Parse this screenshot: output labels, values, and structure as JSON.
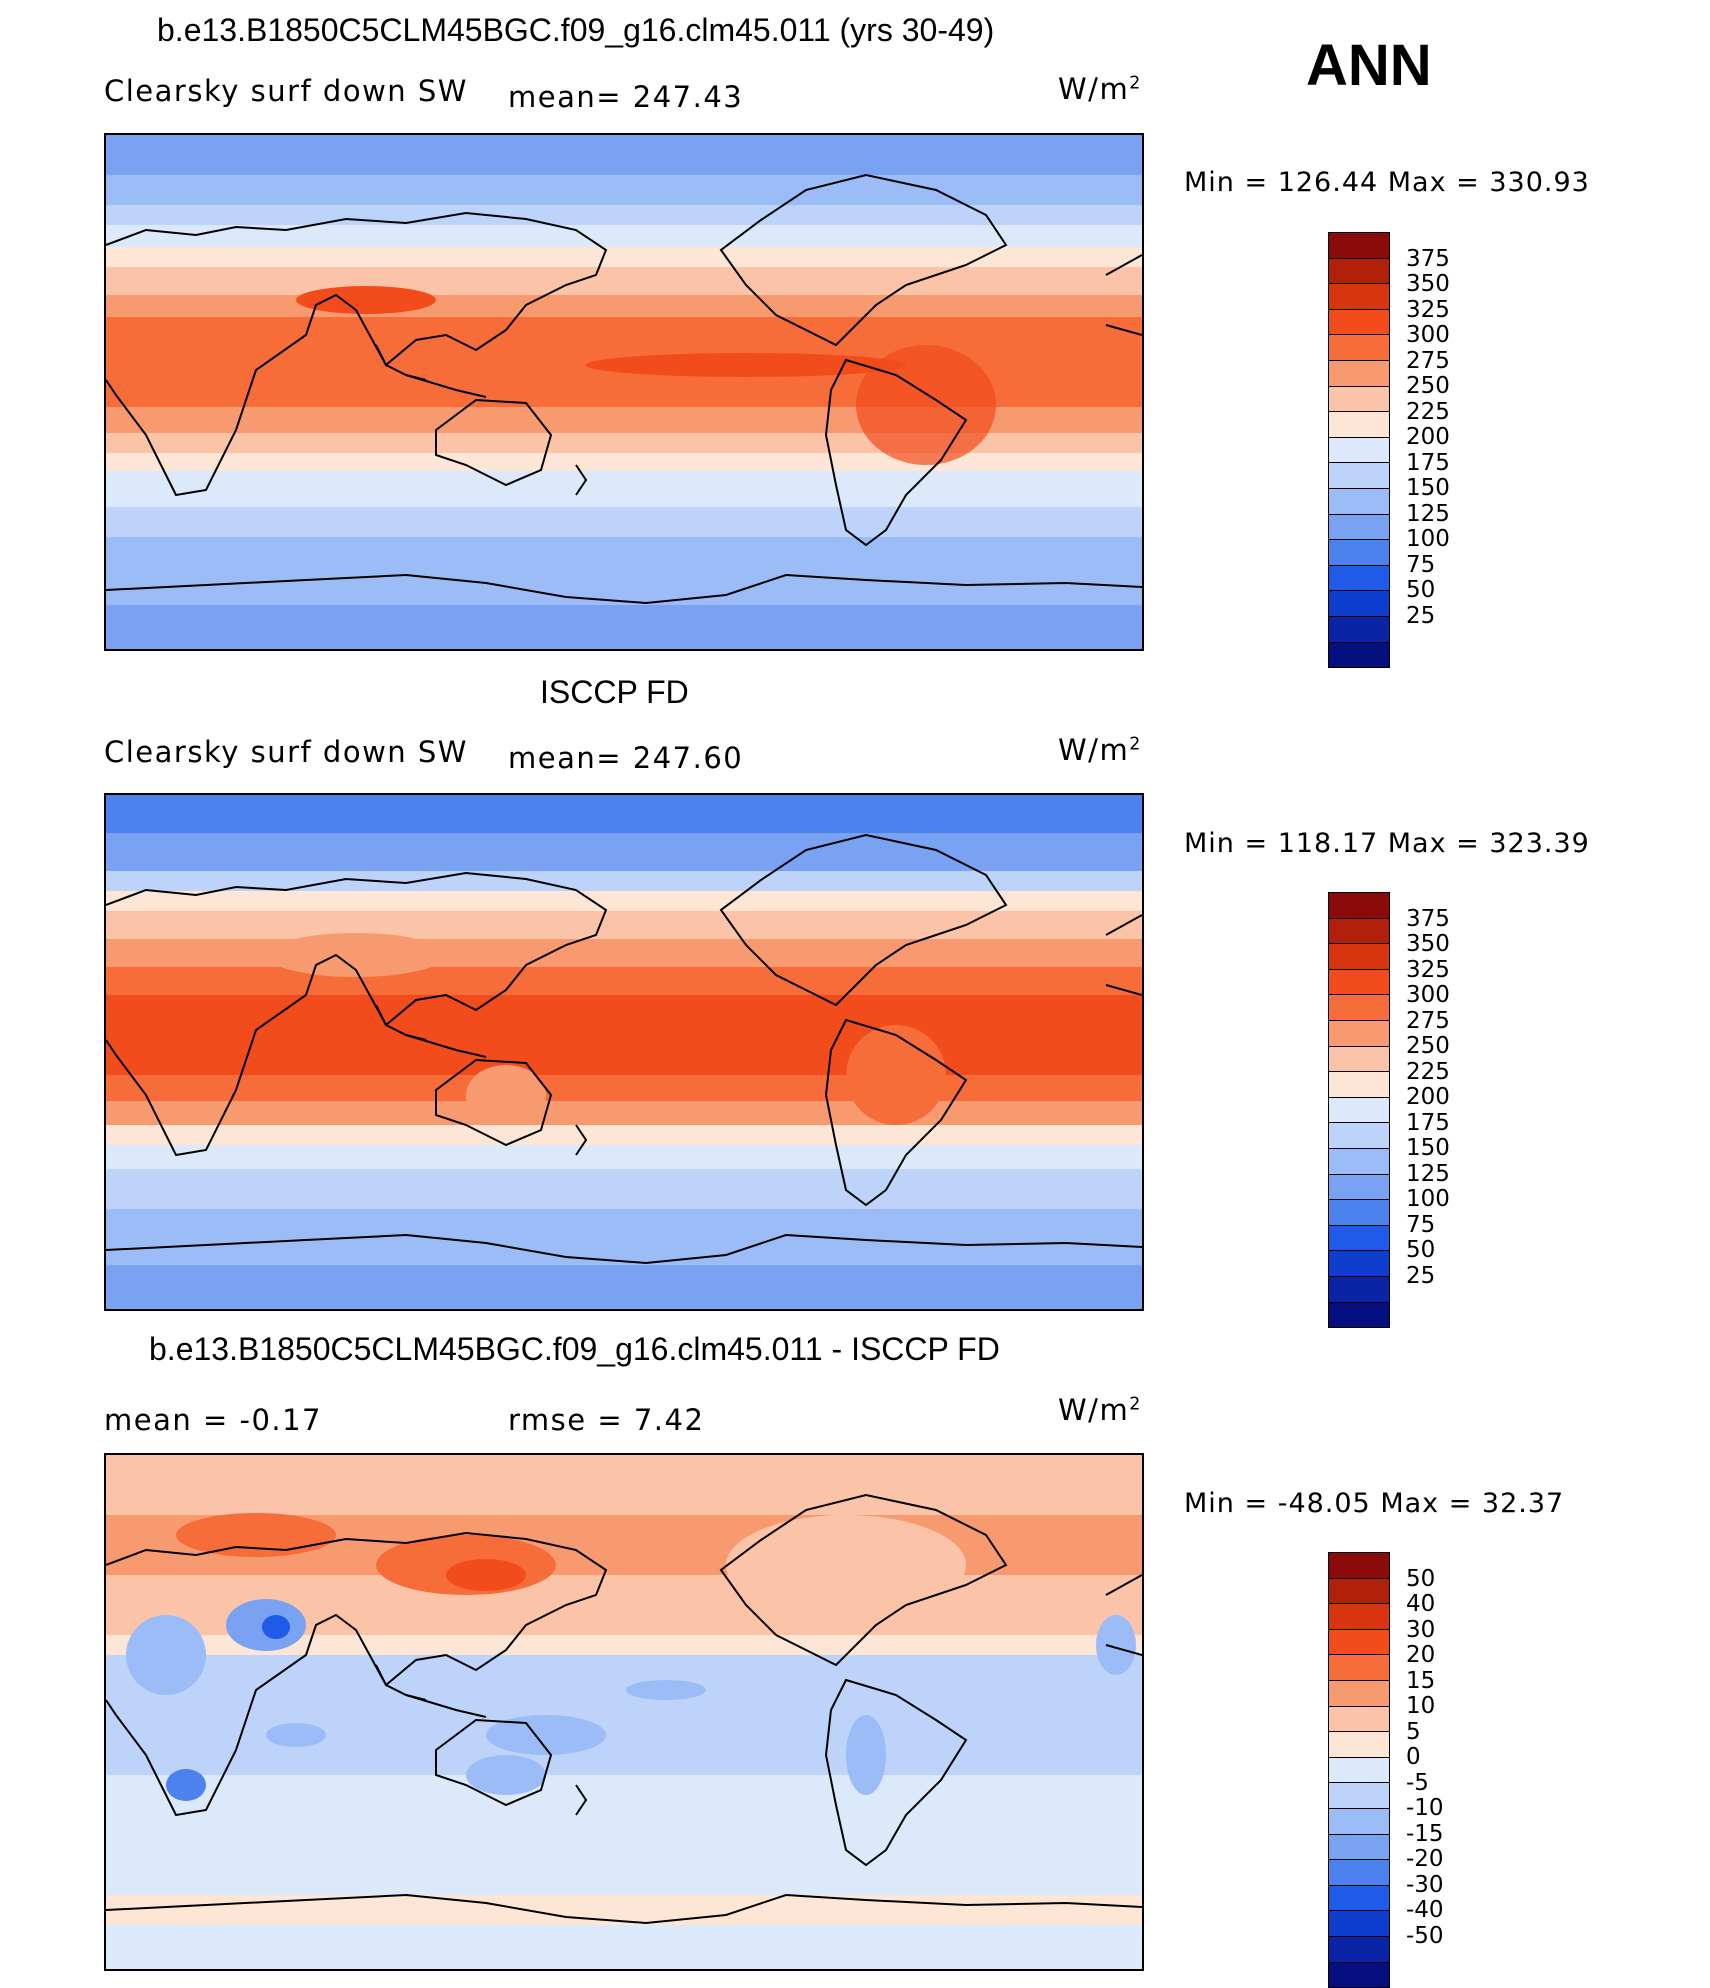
{
  "season": "ANN",
  "panels": [
    {
      "id": "model",
      "title": "b.e13.B1850C5CLM45BGC.f09_g16.clm45.011 (yrs 30-49)",
      "left_text": "Clearsky surf down SW",
      "center_text": "mean= 247.43",
      "units": "W/m",
      "units_sup": "2",
      "minmax": "Min = 126.44 Max = 330.93",
      "colorbar_labels": [
        "375",
        "350",
        "325",
        "300",
        "275",
        "250",
        "225",
        "200",
        "175",
        "150",
        "125",
        "100",
        "75",
        "50",
        "25"
      ]
    },
    {
      "id": "obs",
      "title": "ISCCP FD",
      "left_text": "Clearsky surf down SW",
      "center_text": "mean= 247.60",
      "units": "W/m",
      "units_sup": "2",
      "minmax": "Min = 118.17 Max = 323.39",
      "colorbar_labels": [
        "375",
        "350",
        "325",
        "300",
        "275",
        "250",
        "225",
        "200",
        "175",
        "150",
        "125",
        "100",
        "75",
        "50",
        "25"
      ]
    },
    {
      "id": "diff",
      "title": "b.e13.B1850C5CLM45BGC.f09_g16.clm45.011 - ISCCP FD",
      "left_text": "mean = -0.17",
      "center_text": "rmse = 7.42",
      "units": "W/m",
      "units_sup": "2",
      "minmax": "Min = -48.05 Max = 32.37",
      "colorbar_labels": [
        "50",
        "40",
        "30",
        "20",
        "15",
        "10",
        "5",
        "0",
        "-5",
        "-10",
        "-15",
        "-20",
        "-30",
        "-40",
        "-50"
      ]
    }
  ],
  "colorbar_colors": [
    "#8b0a0a",
    "#b2200c",
    "#d8340f",
    "#f24c1c",
    "#f66d3a",
    "#f89a70",
    "#fbc4a8",
    "#fde6d6",
    "#dbe9fb",
    "#bdd3fa",
    "#9cbcf7",
    "#7aa2f2",
    "#4d82ee",
    "#1f5ae8",
    "#0f3ecf",
    "#0a24a8",
    "#050f80"
  ],
  "diff_colorbar_colors": [
    "#8b0a0a",
    "#b2200c",
    "#d8340f",
    "#f24c1c",
    "#f66d3a",
    "#f89a70",
    "#fbc4a8",
    "#fde6d6",
    "#dbe9fb",
    "#bdd3fa",
    "#9cbcf7",
    "#7aa2f2",
    "#4d82ee",
    "#1f5ae8",
    "#0f3ecf",
    "#0a24a8",
    "#050f80"
  ]
}
